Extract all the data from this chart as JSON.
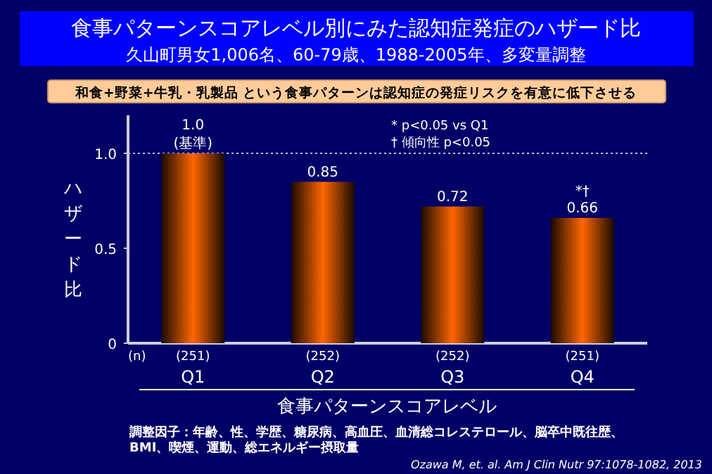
{
  "chart_data": {
    "type": "bar",
    "title": "食事パターンスコアレベル別にみた認知症発症のハザード比",
    "subtitle": "久山町男女1,006名、60-79歳、1988-2005年、多変量調整",
    "xlabel": "食事パターンスコアレベル",
    "ylabel": "ハザード比",
    "categories": [
      "Q1",
      "Q2",
      "Q3",
      "Q4"
    ],
    "values": [
      1.0,
      0.85,
      0.72,
      0.66
    ],
    "value_labels": [
      "1.0\n(基準)",
      "0.85",
      "0.72",
      "0.66"
    ],
    "color": "#ff6600",
    "ylim": [
      0,
      1.2
    ],
    "yticks": [
      0,
      0.5,
      {
        "value": 1,
        "label": "1.0"
      }
    ],
    "grid": false,
    "ref_lines": [
      {
        "axis": "y",
        "value": 1,
        "line_style": "dotted",
        "color": "#bbbbdd"
      }
    ],
    "annotations": [
      "和食+野菜+牛乳・乳製品 という食事パターンは認知症の発症リスクを有意に低下させる",
      "* p<0.05 vs Q1",
      "† 傾向性 p<0.05",
      "(n)",
      "調整因子：年齢、性、学歴、糖尿病、高血圧、血清総コレステロール、脳卒中既往歴、BMI、喫煙、運動、総エネルギー摂取量",
      "Ozawa M, et. al. Am J Clin Nutr 97:1078-1082, 2013",
      {
        "text": "*†",
        "x": "Q4",
        "y": 0.66
      },
      "(251)",
      "(252)",
      "(252)",
      "(251)"
    ]
  }
}
